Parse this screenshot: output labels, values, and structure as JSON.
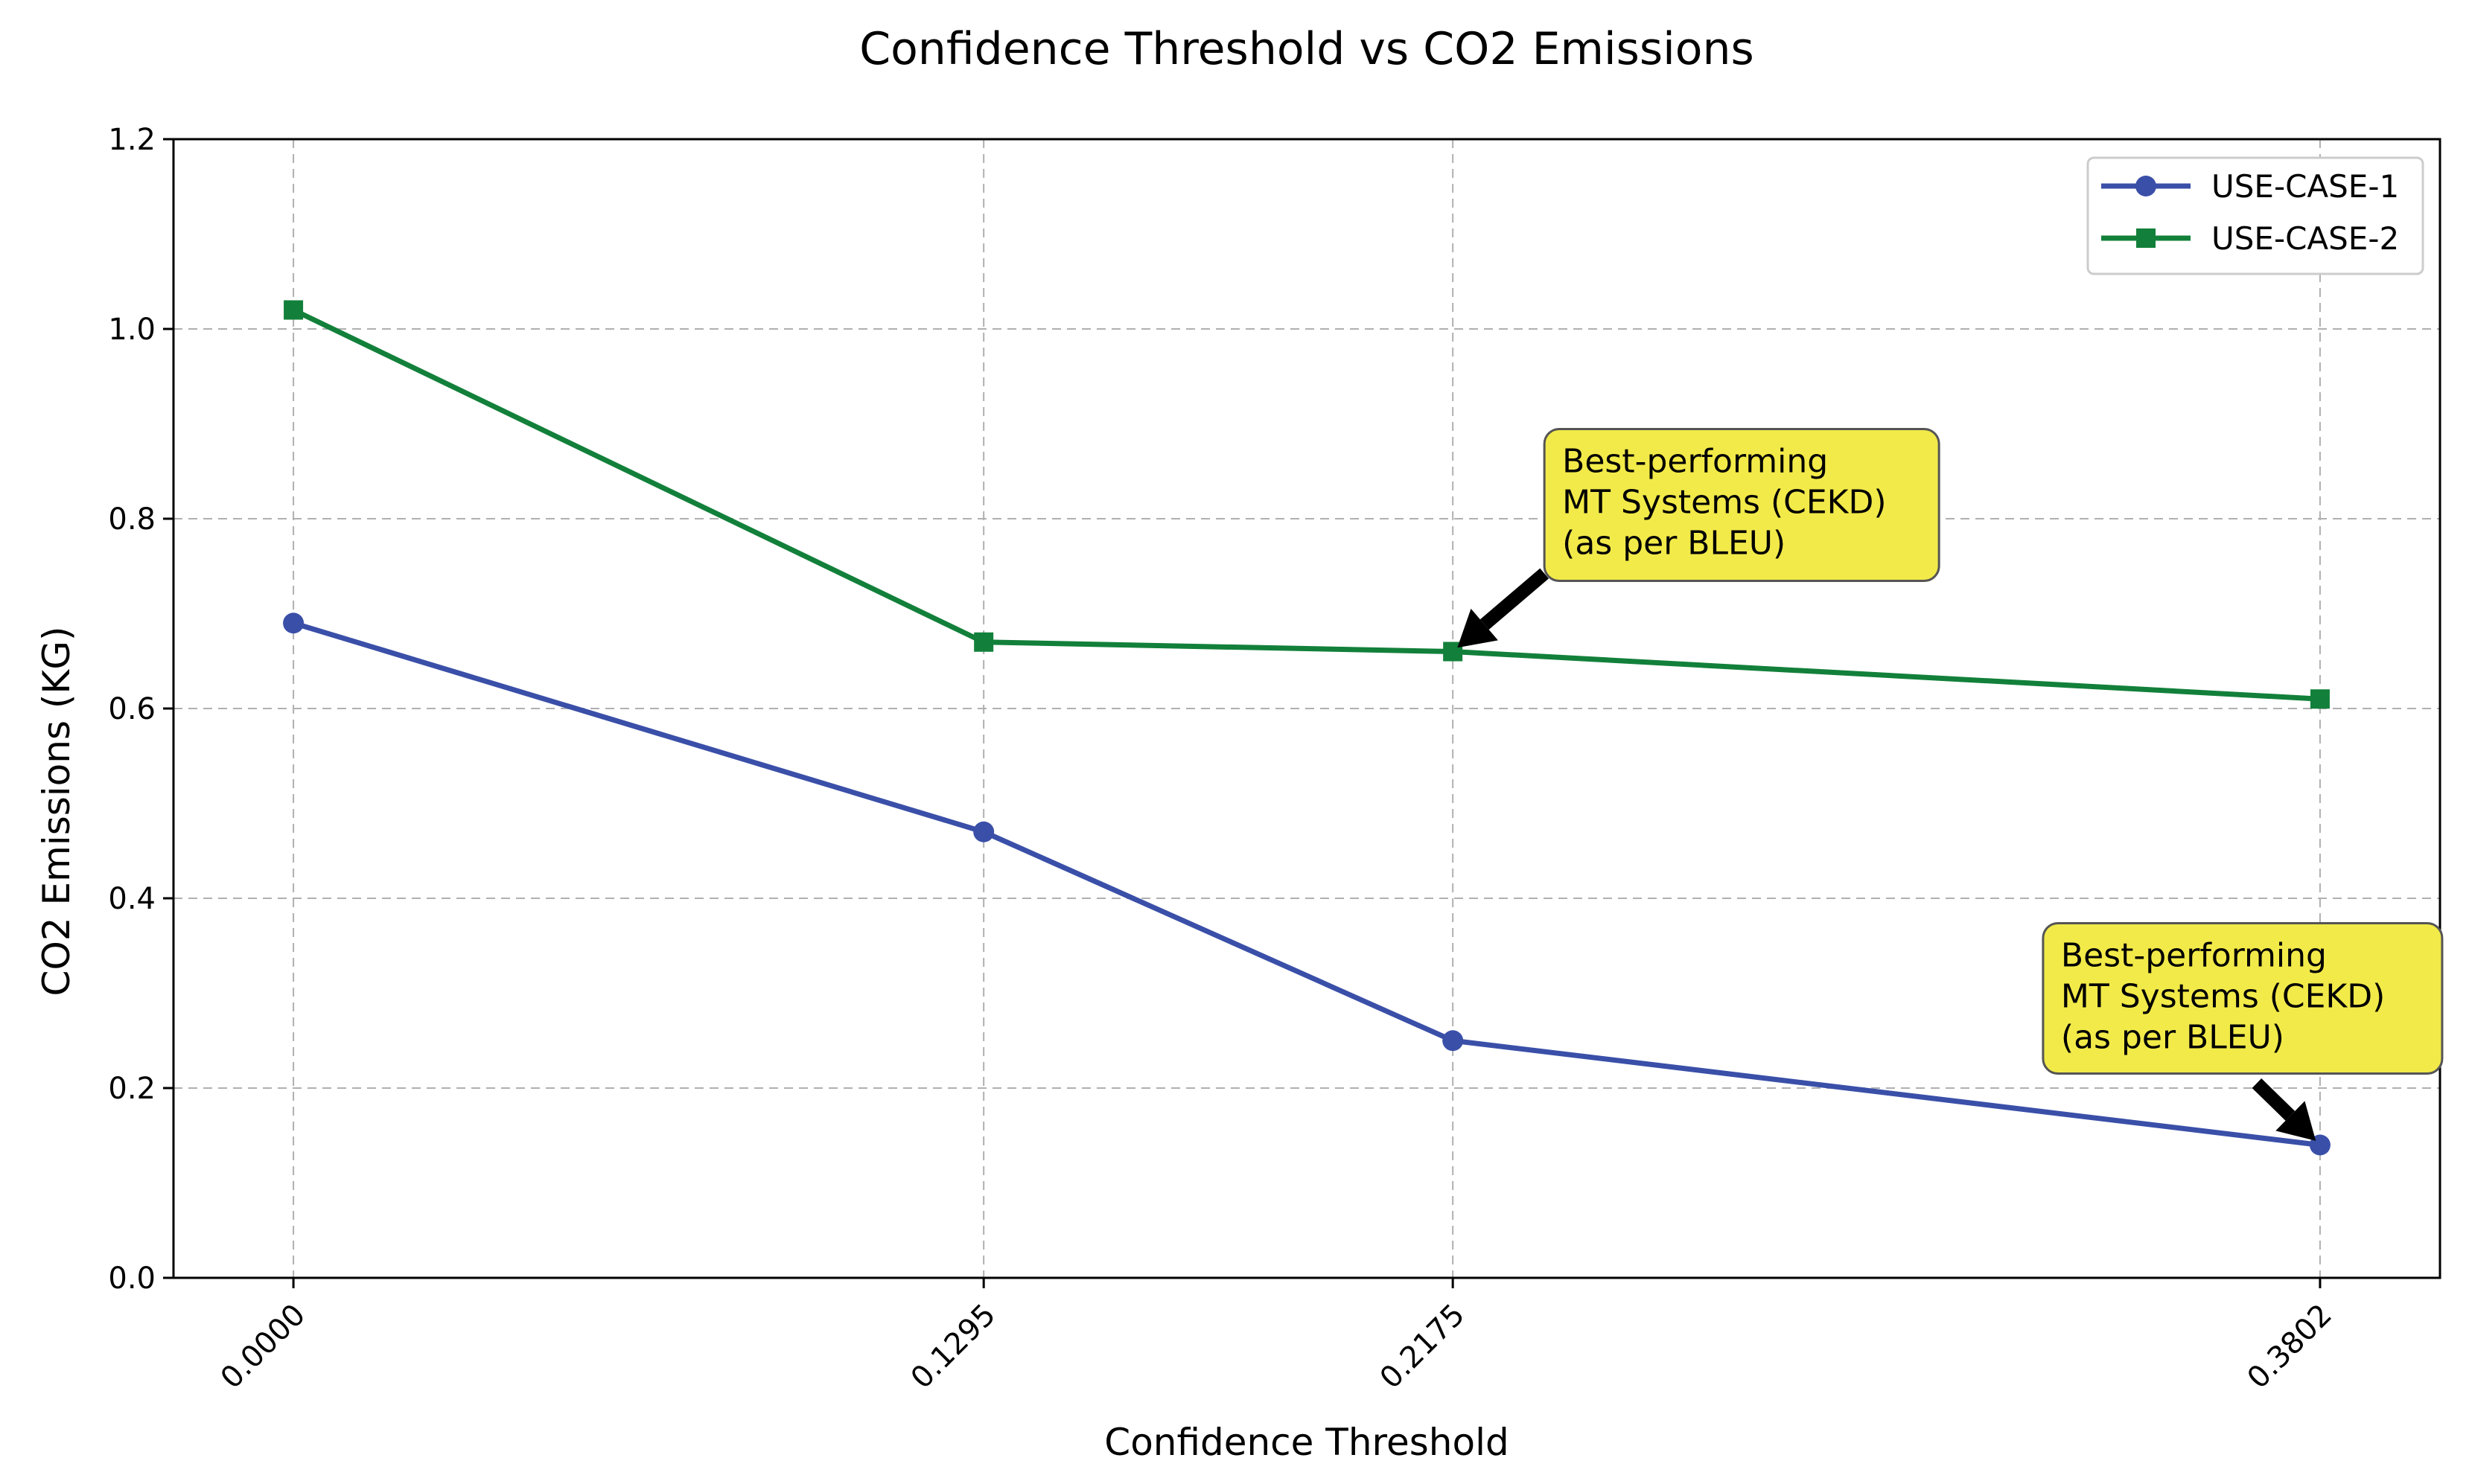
{
  "chart_data": {
    "type": "line",
    "title": "Confidence Threshold vs CO2 Emissions",
    "xlabel": "Confidence Threshold",
    "ylabel": "CO2 Emissions (KG)",
    "categories": [
      "0.0000",
      "0.1295",
      "0.2175",
      "0.3802"
    ],
    "x": [
      0.0,
      0.1295,
      0.2175,
      0.3802
    ],
    "xlim": [
      -0.0225,
      0.4027
    ],
    "ylim": [
      0,
      1.2
    ],
    "yticks": [
      "0.0",
      "0.2",
      "0.4",
      "0.6",
      "0.8",
      "1.0",
      "1.2"
    ],
    "grid": true,
    "legend_position": "top-right",
    "series": [
      {
        "name": "USE-CASE-1",
        "values": [
          0.69,
          0.47,
          0.25,
          0.14
        ],
        "color": "#3a4fa8",
        "marker": "circle"
      },
      {
        "name": "USE-CASE-2",
        "values": [
          1.02,
          0.67,
          0.66,
          0.61
        ],
        "color": "#12803a",
        "marker": "square"
      }
    ],
    "annotations": [
      {
        "lines": [
          "Best-performing",
          " MT Systems (CEKD)",
          "(as per BLEU)"
        ],
        "series": 1,
        "point": 2,
        "box_color": "#f2ea49"
      },
      {
        "lines": [
          "Best-performing",
          " MT Systems (CEKD)",
          "(as per BLEU)"
        ],
        "series": 0,
        "point": 3,
        "box_color": "#f2ea49"
      }
    ]
  }
}
